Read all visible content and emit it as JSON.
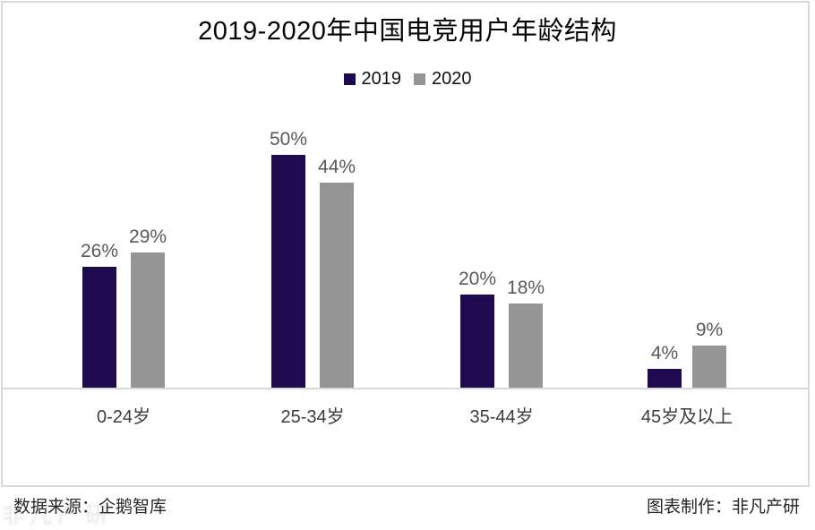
{
  "title": "2019-2020年中国电竞用户年龄结构",
  "footer": {
    "source": "数据来源：企鹅智库",
    "maker": "图表制作：非凡产研"
  },
  "watermark": "非凡产研",
  "colors": {
    "series_2019": "#1f0a50",
    "series_2020": "#959595",
    "frame_border": "#d9d9d9",
    "axis_line": "#d9d9d9",
    "value_label": "#595959",
    "category_label": "#3d3d3d"
  },
  "chart_data": {
    "type": "bar",
    "title": "2019-2020年中国电竞用户年龄结构",
    "categories": [
      "0-24岁",
      "25-34岁",
      "35-44岁",
      "45岁及以上"
    ],
    "series": [
      {
        "name": "2019",
        "color": "#1f0a50",
        "values": [
          26,
          50,
          20,
          4
        ]
      },
      {
        "name": "2020",
        "color": "#959595",
        "values": [
          29,
          44,
          18,
          9
        ]
      }
    ],
    "value_suffix": "%",
    "data_labels": true,
    "ylim": [
      0,
      52
    ],
    "grid": false,
    "legend_position": "top",
    "xlabel": "",
    "ylabel": ""
  }
}
